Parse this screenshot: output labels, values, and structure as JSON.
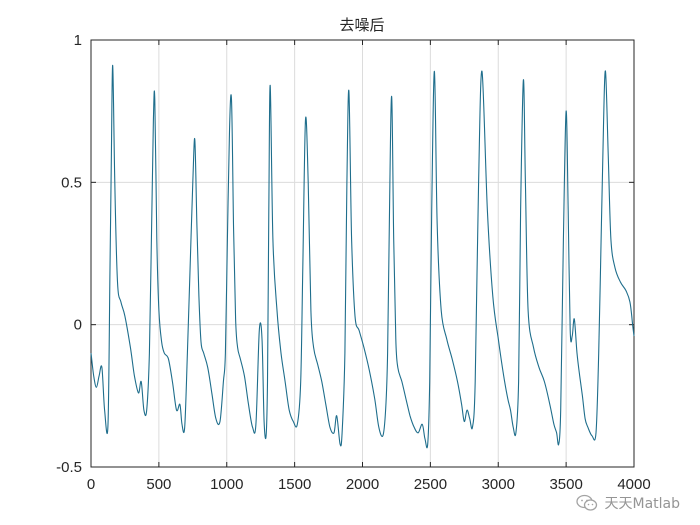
{
  "chart_data": {
    "type": "line",
    "title": "去噪后",
    "xlabel": "",
    "ylabel": "",
    "xlim": [
      0,
      4000
    ],
    "ylim": [
      -0.5,
      1
    ],
    "xticks": [
      0,
      500,
      1000,
      1500,
      2000,
      2500,
      3000,
      3500,
      4000
    ],
    "yticks": [
      -0.5,
      0,
      0.5,
      1
    ],
    "xtick_labels": [
      "0",
      "500",
      "1000",
      "1500",
      "2000",
      "2500",
      "3000",
      "3500",
      "4000"
    ],
    "ytick_labels": [
      "-0.5",
      "0",
      "0.5",
      "1"
    ],
    "grid": true,
    "color": "#1f6e8c",
    "series": [
      {
        "x": [
          0,
          20,
          40,
          60,
          80,
          100,
          125,
          140,
          150,
          160,
          175,
          195,
          220,
          250,
          290,
          320,
          350,
          370,
          390,
          410,
          430,
          445,
          460,
          470,
          485,
          500,
          520,
          540,
          570,
          600,
          630,
          655,
          670,
          690,
          710,
          730,
          750,
          765,
          780,
          795,
          810,
          830,
          860,
          890,
          920,
          950,
          975,
          990,
          1005,
          1020,
          1035,
          1050,
          1065,
          1080,
          1100,
          1130,
          1160,
          1190,
          1215,
          1240,
          1260,
          1275,
          1290,
          1300,
          1310,
          1320,
          1340,
          1370,
          1400,
          1430,
          1460,
          1490,
          1520,
          1545,
          1560,
          1580,
          1600,
          1620,
          1640,
          1670,
          1700,
          1730,
          1760,
          1790,
          1810,
          1835,
          1850,
          1870,
          1885,
          1900,
          1920,
          1945,
          1975,
          2010,
          2050,
          2090,
          2120,
          2150,
          2170,
          2185,
          2200,
          2215,
          2230,
          2245,
          2260,
          2290,
          2320,
          2350,
          2380,
          2410,
          2440,
          2460,
          2480,
          2495,
          2510,
          2530,
          2550,
          2580,
          2620,
          2660,
          2700,
          2730,
          2750,
          2770,
          2790,
          2810,
          2830,
          2855,
          2880,
          2920,
          2960,
          3000,
          3040,
          3070,
          3090,
          3110,
          3130,
          3150,
          3165,
          3185,
          3200,
          3220,
          3260,
          3300,
          3340,
          3380,
          3410,
          3430,
          3445,
          3460,
          3480,
          3500,
          3515,
          3530,
          3545,
          3560,
          3580,
          3600,
          3620,
          3640,
          3660,
          3690,
          3720,
          3740,
          3760,
          3775,
          3790,
          3810,
          3830,
          3860,
          3900,
          3940,
          3970,
          3990,
          4000
        ],
        "y": [
          -0.1,
          -0.18,
          -0.22,
          -0.18,
          -0.15,
          -0.3,
          -0.35,
          0.2,
          0.6,
          0.91,
          0.5,
          0.15,
          0.08,
          0.03,
          -0.08,
          -0.18,
          -0.24,
          -0.2,
          -0.3,
          -0.3,
          -0.1,
          0.3,
          0.72,
          0.79,
          0.3,
          0.05,
          -0.06,
          -0.1,
          -0.12,
          -0.2,
          -0.3,
          -0.28,
          -0.35,
          -0.36,
          -0.1,
          0.2,
          0.5,
          0.65,
          0.35,
          0.1,
          -0.06,
          -0.1,
          -0.15,
          -0.24,
          -0.33,
          -0.34,
          -0.2,
          -0.1,
          0.3,
          0.68,
          0.79,
          0.35,
          0.02,
          -0.08,
          -0.12,
          -0.18,
          -0.28,
          -0.36,
          -0.35,
          -0.02,
          -0.05,
          -0.34,
          -0.39,
          -0.2,
          0.4,
          0.84,
          0.3,
          0.05,
          -0.1,
          -0.2,
          -0.3,
          -0.34,
          -0.35,
          -0.2,
          0.2,
          0.72,
          0.5,
          0.05,
          -0.08,
          -0.14,
          -0.2,
          -0.28,
          -0.36,
          -0.38,
          -0.32,
          -0.42,
          -0.38,
          -0.1,
          0.5,
          0.82,
          0.3,
          0.03,
          -0.02,
          -0.08,
          -0.16,
          -0.26,
          -0.36,
          -0.39,
          -0.3,
          -0.1,
          0.45,
          0.8,
          0.3,
          -0.05,
          -0.15,
          -0.2,
          -0.26,
          -0.32,
          -0.36,
          -0.38,
          -0.35,
          -0.4,
          -0.42,
          -0.2,
          0.4,
          0.89,
          0.35,
          0.05,
          -0.05,
          -0.12,
          -0.2,
          -0.28,
          -0.34,
          -0.3,
          -0.33,
          -0.36,
          -0.2,
          0.5,
          0.89,
          0.4,
          0.1,
          -0.05,
          -0.18,
          -0.26,
          -0.3,
          -0.36,
          -0.38,
          -0.2,
          0.4,
          0.86,
          0.5,
          0.05,
          -0.08,
          -0.15,
          -0.2,
          -0.28,
          -0.35,
          -0.38,
          -0.42,
          -0.3,
          0.3,
          0.75,
          0.4,
          -0.02,
          -0.04,
          0.02,
          -0.1,
          -0.18,
          -0.25,
          -0.33,
          -0.36,
          -0.39,
          -0.38,
          -0.1,
          0.35,
          0.7,
          0.89,
          0.6,
          0.3,
          0.2,
          0.15,
          0.12,
          0.08,
          0.0,
          -0.04
        ]
      }
    ]
  },
  "watermark": {
    "text": "天天Matlab",
    "icon": "wechat-icon"
  }
}
